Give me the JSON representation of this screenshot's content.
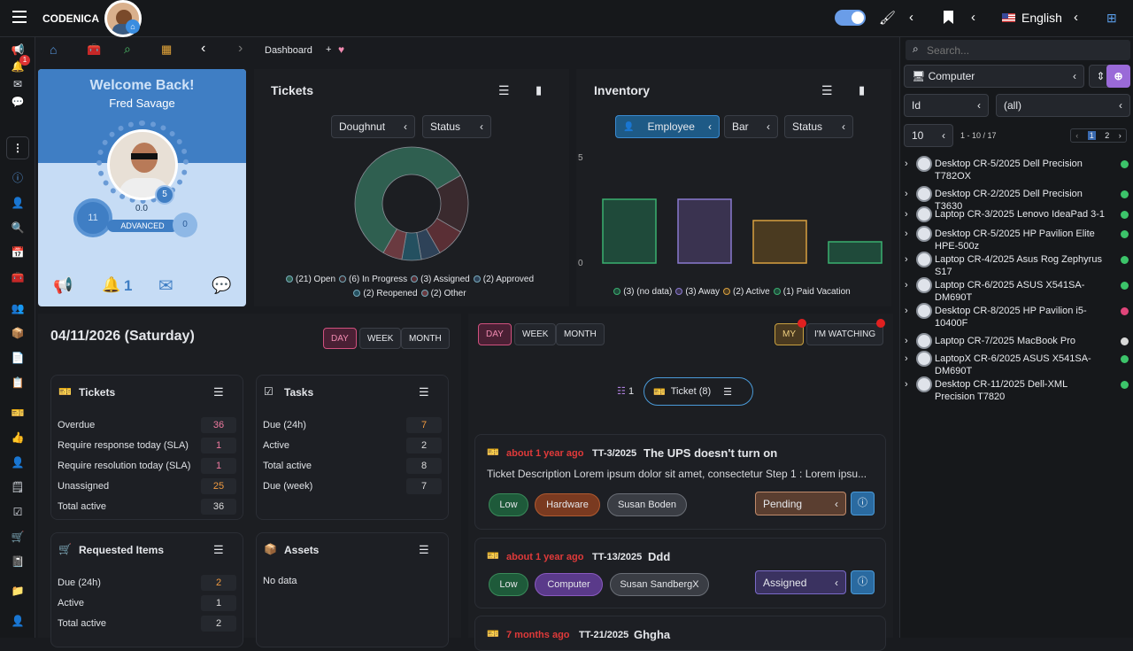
{
  "header": {
    "brand": "CODENICA",
    "language": "English"
  },
  "sidebar": {
    "notification_count": "1"
  },
  "nav": {
    "breadcrumb": "Dashboard",
    "add": "+"
  },
  "welcome": {
    "title": "Welcome Back!",
    "name": "Fred Savage",
    "level": "11",
    "progress": "0.0",
    "rank": "ADVANCED",
    "badge_count": "5",
    "zero": "0",
    "bell_count": "1"
  },
  "tickets_chart": {
    "title": "Tickets",
    "type_btn": "Doughnut",
    "group_btn": "Status",
    "legend": [
      "(21) Open",
      "(6) In Progress",
      "(3) Assigned",
      "(2) Approved",
      "(2) Reopened",
      "(2) Other"
    ],
    "colors": [
      "#2f5f50",
      "#3a2a2e",
      "#5a2f35",
      "#2e4258",
      "#245060",
      "#6a3a40"
    ]
  },
  "inventory_chart": {
    "title": "Inventory",
    "group_btn": "Employee",
    "type_btn": "Bar",
    "status_btn": "Status",
    "y_top": "5",
    "y_bottom": "0",
    "legend": [
      "(3) (no data)",
      "(3) Away",
      "(2) Active",
      "(1) Paid Vacation"
    ]
  },
  "chart_data": [
    {
      "type": "pie",
      "title": "Tickets",
      "categories": [
        "Open",
        "In Progress",
        "Assigned",
        "Approved",
        "Reopened",
        "Other"
      ],
      "values": [
        21,
        6,
        3,
        2,
        2,
        2
      ]
    },
    {
      "type": "bar",
      "title": "Inventory",
      "categories": [
        "(no data)",
        "Away",
        "Active",
        "Paid Vacation"
      ],
      "values": [
        3,
        3,
        2,
        1
      ],
      "ylim": [
        0,
        5
      ]
    }
  ],
  "calendar": {
    "date": "04/11/2026 (Saturday)",
    "day": "DAY",
    "week": "WEEK",
    "month": "MONTH"
  },
  "tickets_box": {
    "title": "Tickets",
    "rows": [
      {
        "label": "Overdue",
        "value": "36"
      },
      {
        "label": "Require response today (SLA)",
        "value": "1"
      },
      {
        "label": "Require resolution today (SLA)",
        "value": "1"
      },
      {
        "label": "Unassigned",
        "value": "25"
      },
      {
        "label": "Total active",
        "value": "36"
      }
    ]
  },
  "tasks_box": {
    "title": "Tasks",
    "rows": [
      {
        "label": "Due (24h)",
        "value": "7"
      },
      {
        "label": "Active",
        "value": "2"
      },
      {
        "label": "Total active",
        "value": "8"
      },
      {
        "label": "Due (week)",
        "value": "7"
      }
    ]
  },
  "requested_box": {
    "title": "Requested Items",
    "rows": [
      {
        "label": "Due (24h)",
        "value": "2"
      },
      {
        "label": "Active",
        "value": "1"
      },
      {
        "label": "Total active",
        "value": "2"
      }
    ]
  },
  "assets_box": {
    "title": "Assets",
    "no_data": "No data"
  },
  "feed": {
    "day": "DAY",
    "week": "WEEK",
    "month": "MONTH",
    "my": "MY",
    "watching": "I'M WATCHING",
    "task_count": "1",
    "ticket_tab": "Ticket (8)",
    "items": [
      {
        "ago": "about 1 year ago",
        "id": "TT-3/2025",
        "title": "The UPS doesn't turn on",
        "desc": "Ticket Description Lorem ipsum dolor sit amet, consectetur Step 1 : Lorem ipsu...",
        "priority": "Low",
        "category": "Hardware",
        "user": "Susan Boden",
        "status": "Pending"
      },
      {
        "ago": "about 1 year ago",
        "id": "TT-13/2025",
        "title": "Ddd",
        "priority": "Low",
        "category": "Computer",
        "user": "Susan SandbergX",
        "status": "Assigned"
      },
      {
        "ago": "7 months ago",
        "id": "TT-21/2025",
        "title": "Ghgha"
      }
    ]
  },
  "inventory_panel": {
    "search_placeholder": "Search...",
    "type": "Computer",
    "field": "Id",
    "filter": "(all)",
    "page_size": "10",
    "range": "1 - 10 / 17",
    "page1": "1",
    "page2": "2",
    "items": [
      {
        "name": "Desktop CR-5/2025 Dell Precision T782OX",
        "color": "#3cc46a"
      },
      {
        "name": "Desktop CR-2/2025 Dell Precision T3630",
        "color": "#3cc46a"
      },
      {
        "name": "Laptop CR-3/2025 Lenovo IdeaPad 3-1",
        "color": "#3cc46a"
      },
      {
        "name": "Desktop CR-5/2025 HP Pavilion Elite HPE-500z",
        "color": "#3cc46a"
      },
      {
        "name": "Laptop CR-4/2025 Asus Rog Zephyrus S17",
        "color": "#3cc46a"
      },
      {
        "name": "Laptop CR-6/2025 ASUS X541SA-DM690T",
        "color": "#3cc46a"
      },
      {
        "name": "Desktop CR-8/2025 HP Pavilion i5-10400F",
        "color": "#e0457a"
      },
      {
        "name": "Laptop CR-7/2025 MacBook Pro",
        "color": "#d8d8d8"
      },
      {
        "name": "LaptopX CR-6/2025 ASUS X541SA-DM690T",
        "color": "#3cc46a"
      },
      {
        "name": "Desktop CR-11/2025 Dell-XML Precision T7820",
        "color": "#3cc46a"
      }
    ]
  }
}
